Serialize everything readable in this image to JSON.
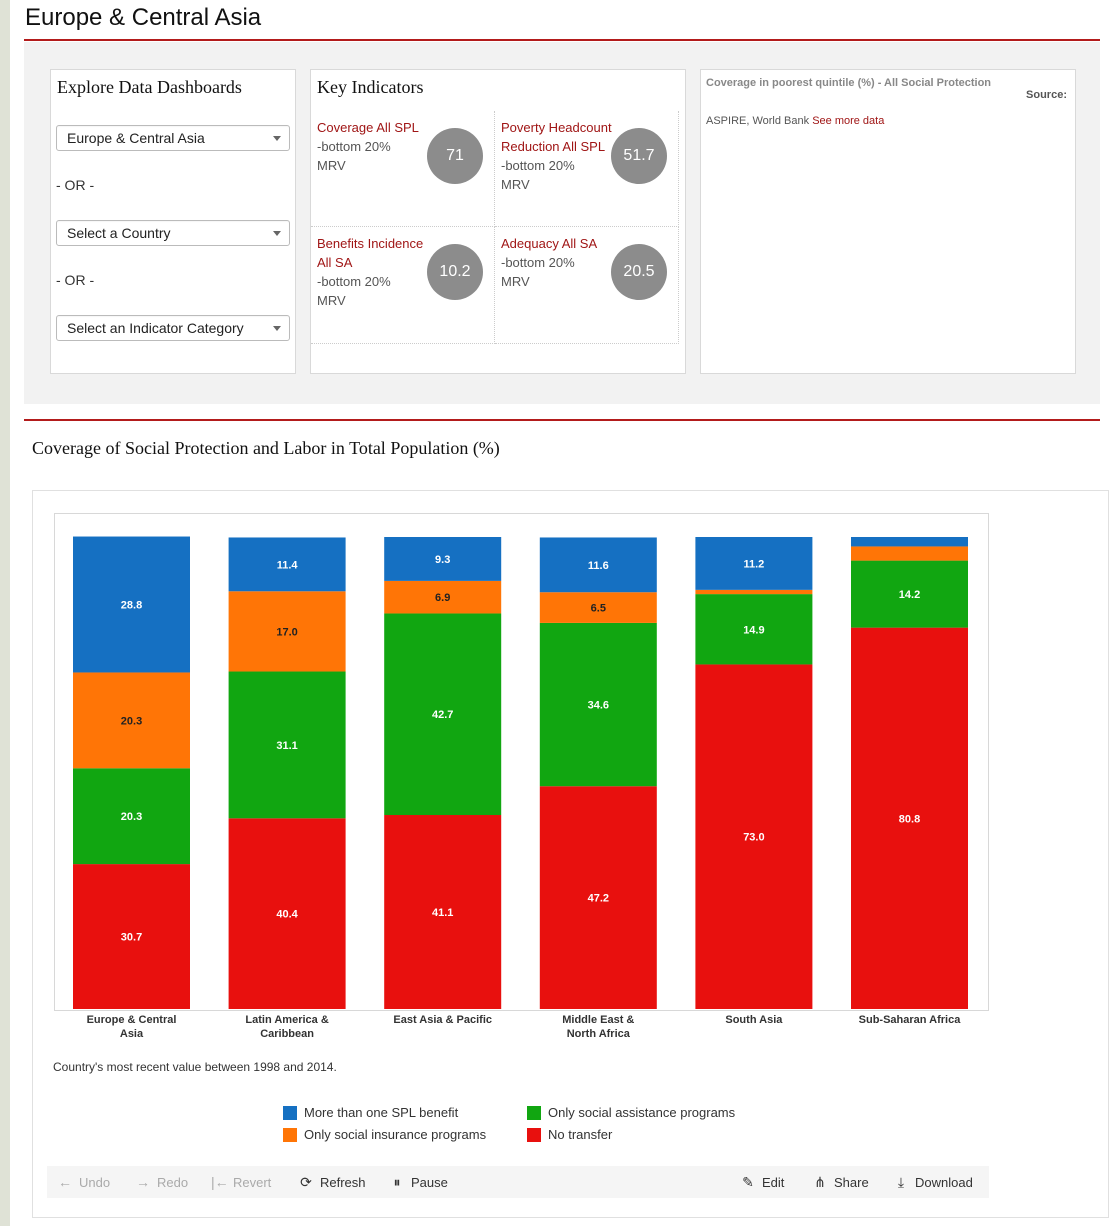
{
  "region_title": "Europe & Central Asia",
  "explore": {
    "title": "Explore Data Dashboards",
    "region_select": "Europe & Central Asia",
    "or1": "- OR -",
    "country_select": "Select a Country",
    "or2": "- OR -",
    "category_select": "Select an Indicator Category"
  },
  "key_indicators": {
    "title": "Key Indicators",
    "items": [
      {
        "label": "Coverage All SPL",
        "sub1": "-bottom 20%",
        "sub2": "MRV",
        "value": "71"
      },
      {
        "label": "Poverty Headcount Reduction All SPL",
        "sub1": "-bottom 20%",
        "sub2": "MRV",
        "value": "51.7"
      },
      {
        "label": "Benefits Incidence All SA",
        "sub1": "-bottom 20%",
        "sub2": "MRV",
        "value": "10.2"
      },
      {
        "label": "Adequacy All SA",
        "sub1": "-bottom 20%",
        "sub2": "MRV",
        "value": "20.5"
      }
    ]
  },
  "coverage_panel": {
    "title": "Coverage in poorest quintile (%) - All Social Protection",
    "source_label": "Source:",
    "source_text": "ASPIRE, World Bank",
    "link": "See more data"
  },
  "chart_heading": "Coverage of Social Protection and Labor in Total Population (%)",
  "chart_data": {
    "type": "bar",
    "stacked": true,
    "categories": [
      "Europe & Central Asia",
      "Latin America & Caribbean",
      "East Asia & Pacific",
      "Middle East & North Africa",
      "South Asia",
      "Sub-Saharan Africa"
    ],
    "series": [
      {
        "name": "No transfer",
        "color": "#e8100e",
        "values": [
          30.7,
          40.4,
          41.1,
          47.2,
          73.0,
          80.8
        ]
      },
      {
        "name": "Only social assistance programs",
        "color": "#11a611",
        "values": [
          20.3,
          31.1,
          42.7,
          34.6,
          14.9,
          14.2
        ]
      },
      {
        "name": "Only social insurance programs",
        "color": "#ff7506",
        "values": [
          20.3,
          17.0,
          6.9,
          6.5,
          0.9,
          3.0
        ]
      },
      {
        "name": "More than one SPL benefit",
        "color": "#1570c2",
        "values": [
          28.8,
          11.4,
          9.3,
          11.6,
          11.2,
          2.0
        ]
      }
    ],
    "labels": [
      [
        "30.7",
        "40.4",
        "41.1",
        "47.2",
        "73.0",
        "80.8"
      ],
      [
        "20.3",
        "31.1",
        "42.7",
        "34.6",
        "14.9",
        "14.2"
      ],
      [
        "20.3",
        "17.0",
        "6.9",
        "6.5",
        "",
        ""
      ],
      [
        "28.8",
        "11.4",
        "9.3",
        "11.6",
        "11.2",
        ""
      ]
    ],
    "ylim": [
      0,
      100
    ],
    "legend_order": [
      "More than one SPL benefit",
      "Only social assistance programs",
      "Only social insurance programs",
      "No transfer"
    ]
  },
  "chart_note": "Country's most recent value between 1998 and 2014.",
  "toolbar": {
    "undo": "Undo",
    "redo": "Redo",
    "revert": "Revert",
    "refresh": "Refresh",
    "pause": "Pause",
    "edit": "Edit",
    "share": "Share",
    "download": "Download"
  }
}
